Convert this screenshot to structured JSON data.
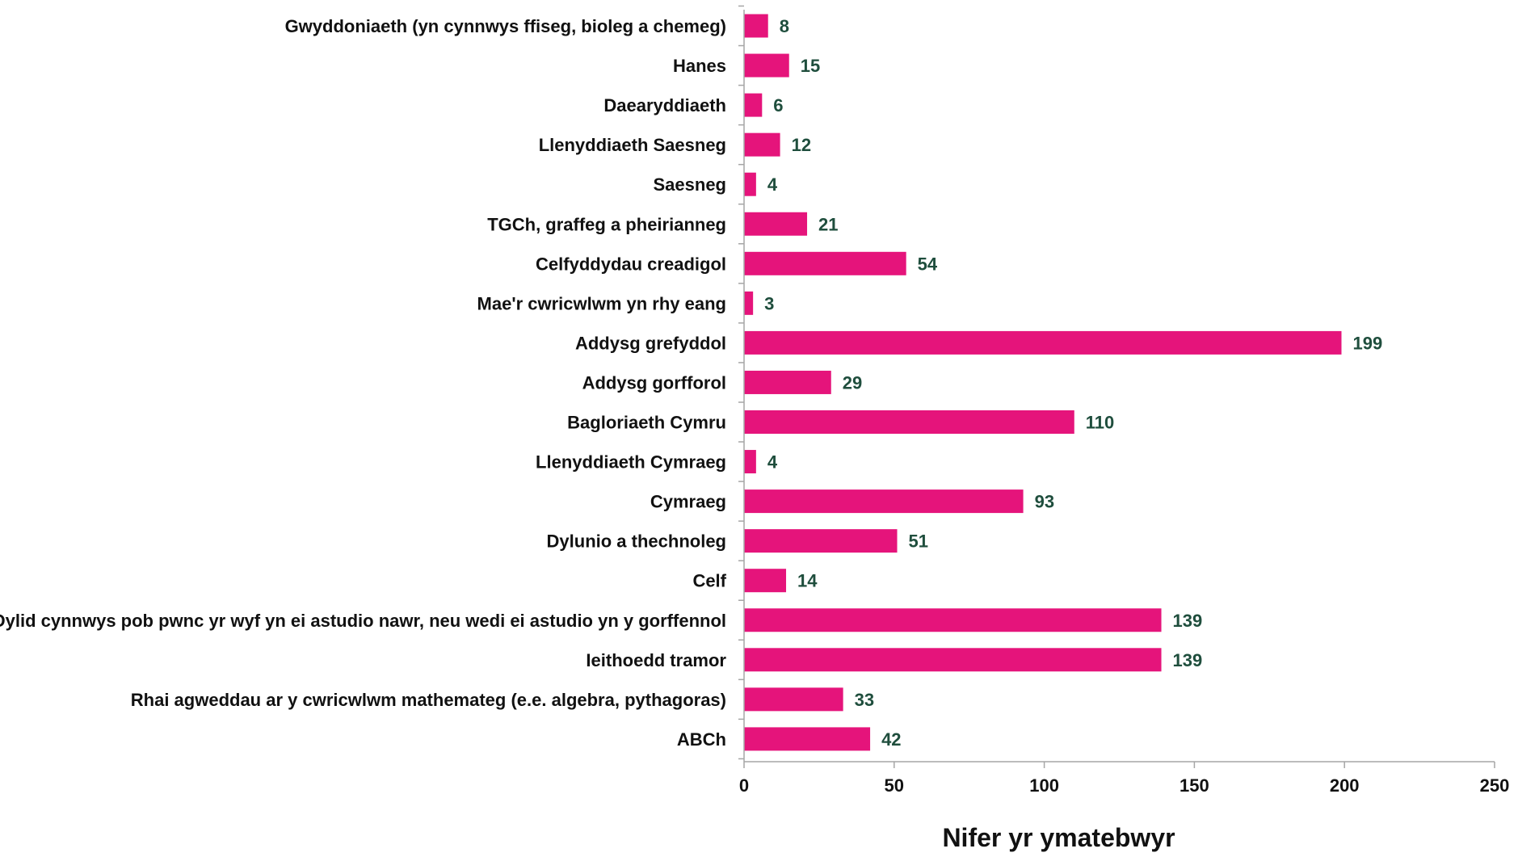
{
  "chart_data": {
    "type": "bar",
    "orientation": "horizontal",
    "categories": [
      "Gwyddoniaeth (yn cynnwys ffiseg, bioleg a chemeg)",
      "Hanes",
      "Daearyddiaeth",
      "Llenyddiaeth Saesneg",
      "Saesneg",
      "TGCh, graffeg a pheirianneg",
      "Celfyddydau creadigol",
      "Mae'r cwricwlwm yn rhy eang",
      "Addysg grefyddol",
      "Addysg gorfforol",
      "Bagloriaeth Cymru",
      "Llenyddiaeth Cymraeg",
      "Cymraeg",
      "Dylunio a thechnoleg",
      "Celf",
      "Dylid cynnwys pob pwnc yr wyf yn ei astudio nawr, neu wedi ei astudio yn y gorffennol",
      "Ieithoedd tramor",
      "Rhai agweddau ar y cwricwlwm mathemateg (e.e. algebra, pythagoras)",
      "ABCh"
    ],
    "values": [
      8,
      15,
      6,
      12,
      4,
      21,
      54,
      3,
      199,
      29,
      110,
      4,
      93,
      51,
      14,
      139,
      139,
      33,
      42
    ],
    "value_labels": [
      "8",
      "15",
      "6",
      "12",
      "4",
      "21",
      "54",
      "3",
      "199",
      "29",
      "110",
      "4",
      "93",
      "51",
      "14",
      "139",
      "139",
      "33",
      "42"
    ],
    "title": "",
    "xlabel": "Nifer yr ymatebwyr",
    "ylabel": "",
    "xlim": [
      0,
      250
    ],
    "xticks": [
      0,
      50,
      100,
      150,
      200,
      250
    ],
    "xtick_labels": [
      "0",
      "50",
      "100",
      "150",
      "200",
      "250"
    ],
    "grid": false,
    "legend": "none",
    "bar_color": "#E5147B",
    "value_label_color": "#1F4E3D",
    "axis_color": "#A6A6A6"
  }
}
